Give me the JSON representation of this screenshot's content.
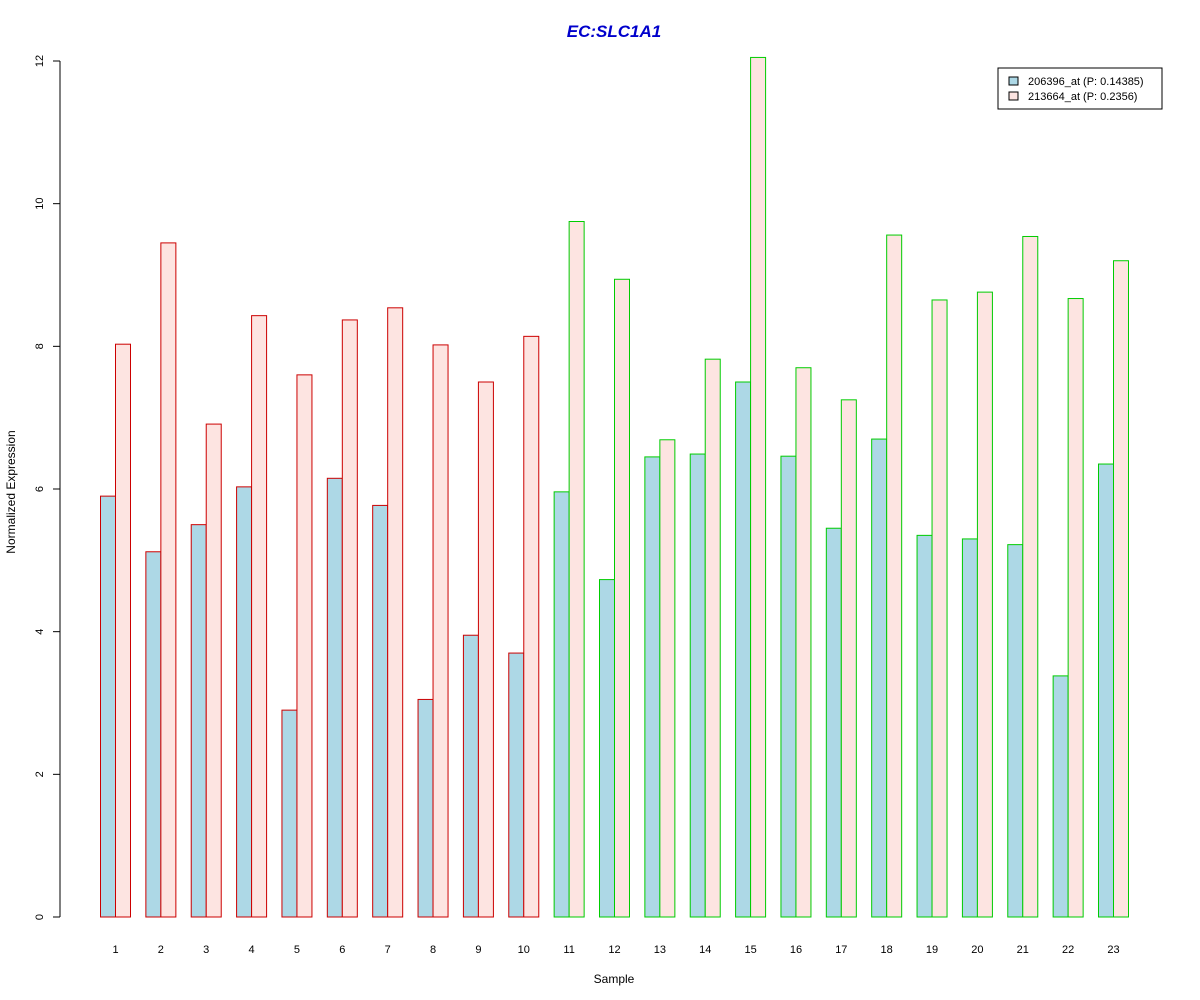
{
  "chart_data": {
    "type": "bar",
    "title": "EC:SLC1A1",
    "xlabel": "Sample",
    "ylabel": "Normalized Expression",
    "ylim": [
      0,
      12
    ],
    "yticks": [
      0,
      2,
      4,
      6,
      8,
      10,
      12
    ],
    "categories": [
      "1",
      "2",
      "3",
      "4",
      "5",
      "6",
      "7",
      "8",
      "9",
      "10",
      "11",
      "12",
      "13",
      "14",
      "15",
      "16",
      "17",
      "18",
      "19",
      "20",
      "21",
      "22",
      "23"
    ],
    "group_border_colors": [
      "#cc0000",
      "#cc0000",
      "#cc0000",
      "#cc0000",
      "#cc0000",
      "#cc0000",
      "#cc0000",
      "#cc0000",
      "#cc0000",
      "#cc0000",
      "#00cc00",
      "#00cc00",
      "#00cc00",
      "#00cc00",
      "#00cc00",
      "#00cc00",
      "#00cc00",
      "#00cc00",
      "#00cc00",
      "#00cc00",
      "#00cc00",
      "#00cc00",
      "#00cc00"
    ],
    "series": [
      {
        "name": "206396_at (P: 0.14385)",
        "fill": "#add8e6",
        "values": [
          5.9,
          5.12,
          5.5,
          6.03,
          2.9,
          6.15,
          5.77,
          3.05,
          3.95,
          3.7,
          5.96,
          4.73,
          6.45,
          6.49,
          7.5,
          6.46,
          5.45,
          6.7,
          5.35,
          5.3,
          5.22,
          3.38,
          6.35
        ]
      },
      {
        "name": "213664_at (P: 0.2356)",
        "fill": "#fde4e1",
        "values": [
          8.03,
          9.45,
          6.91,
          8.43,
          7.6,
          8.37,
          8.54,
          8.02,
          7.5,
          8.14,
          9.75,
          8.94,
          6.69,
          7.82,
          12.05,
          7.7,
          7.25,
          9.56,
          8.65,
          8.76,
          9.54,
          8.67,
          9.2
        ]
      }
    ],
    "legend_position": "top-right",
    "grid": false
  }
}
